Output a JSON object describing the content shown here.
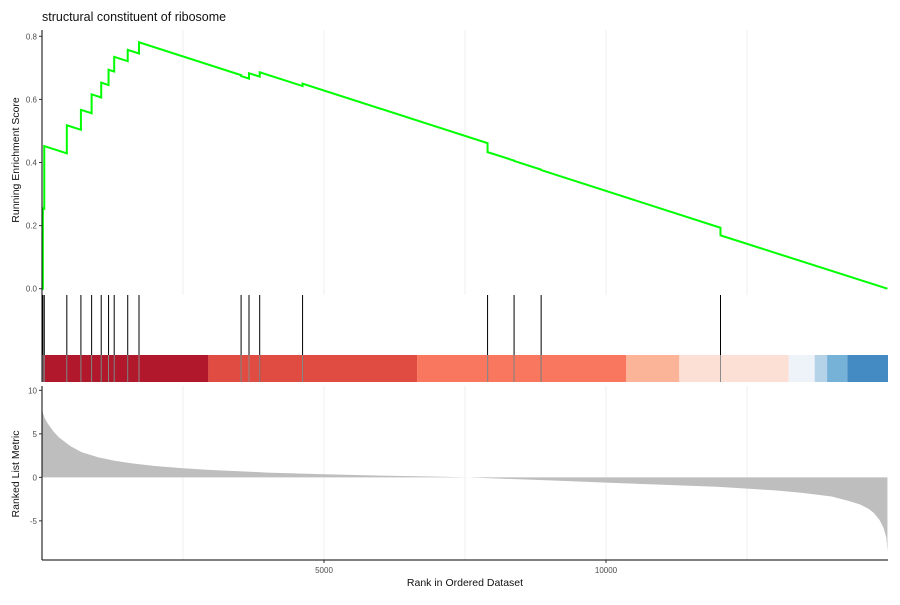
{
  "chart_data": {
    "type": "line",
    "title": "structural constituent of ribosome",
    "x_max": 15000,
    "x_ticks": [
      5000,
      10000
    ],
    "x_tick_labels": [
      "5000",
      "10000"
    ],
    "xlabel": "Rank in Ordered Dataset",
    "panels": {
      "running_score": {
        "ylabel": "Running Enrichment Score",
        "ylim": [
          -0.02,
          0.82
        ],
        "y_ticks": [
          0.0,
          0.2,
          0.4,
          0.6,
          0.8
        ],
        "y_tick_labels": [
          "0.0",
          "0.2",
          "0.4",
          "0.6",
          "0.8"
        ],
        "line_color": "#00ff00",
        "hit_positions": [
          15,
          40,
          440,
          690,
          880,
          1050,
          1180,
          1280,
          1520,
          1720,
          3530,
          3670,
          3860,
          4620,
          7900,
          8370,
          8850,
          12030
        ],
        "running_score_x": [
          0,
          15,
          40,
          440,
          690,
          880,
          1050,
          1180,
          1280,
          1520,
          1720,
          3530,
          3670,
          3860,
          4620,
          7900,
          8370,
          8850,
          12030,
          14990
        ],
        "running_score_y": [
          0.0,
          0.255,
          0.452,
          0.518,
          0.567,
          0.616,
          0.653,
          0.694,
          0.735,
          0.757,
          0.781,
          0.674,
          0.683,
          0.686,
          0.65,
          0.433,
          0.405,
          0.376,
          0.169,
          0.0
        ]
      },
      "color_band": {
        "segments": [
          {
            "from": 0,
            "to": 2950,
            "color": "#b2182b"
          },
          {
            "from": 2950,
            "to": 6650,
            "color": "#e04c41"
          },
          {
            "from": 6650,
            "to": 10360,
            "color": "#f8775e"
          },
          {
            "from": 10360,
            "to": 11300,
            "color": "#fbb498"
          },
          {
            "from": 11300,
            "to": 13240,
            "color": "#fde0d5"
          },
          {
            "from": 13240,
            "to": 13700,
            "color": "#eef2f9"
          },
          {
            "from": 13700,
            "to": 13920,
            "color": "#b5d3e8"
          },
          {
            "from": 13920,
            "to": 14280,
            "color": "#76b1d8"
          },
          {
            "from": 14280,
            "to": 15000,
            "color": "#438bc2"
          }
        ]
      },
      "ranked_list": {
        "ylabel": "Ranked List Metric",
        "ylim": [
          -9.5,
          10.5
        ],
        "y_ticks": [
          -5,
          0,
          5,
          10
        ],
        "y_tick_labels": [
          "-5",
          "0",
          "5",
          "10"
        ],
        "fill_color": "#bebebe",
        "metric_x": [
          0,
          15,
          50,
          100,
          200,
          300,
          500,
          700,
          1000,
          1300,
          1600,
          2000,
          2500,
          3000,
          3500,
          4000,
          5000,
          6000,
          7000,
          7400,
          7600,
          8000,
          9000,
          10000,
          11000,
          12000,
          12500,
          13000,
          13500,
          14000,
          14300,
          14500,
          14650,
          14750,
          14850,
          14920,
          14970,
          14990
        ],
        "metric_y": [
          7.9,
          7.4,
          6.8,
          6.2,
          5.3,
          4.6,
          3.6,
          2.9,
          2.3,
          1.9,
          1.6,
          1.3,
          1.05,
          0.85,
          0.7,
          0.55,
          0.35,
          0.2,
          0.08,
          0.02,
          -0.02,
          -0.12,
          -0.35,
          -0.6,
          -0.85,
          -1.1,
          -1.3,
          -1.5,
          -1.8,
          -2.2,
          -2.7,
          -3.1,
          -3.6,
          -4.1,
          -4.9,
          -5.8,
          -6.9,
          -8.5
        ]
      }
    }
  }
}
